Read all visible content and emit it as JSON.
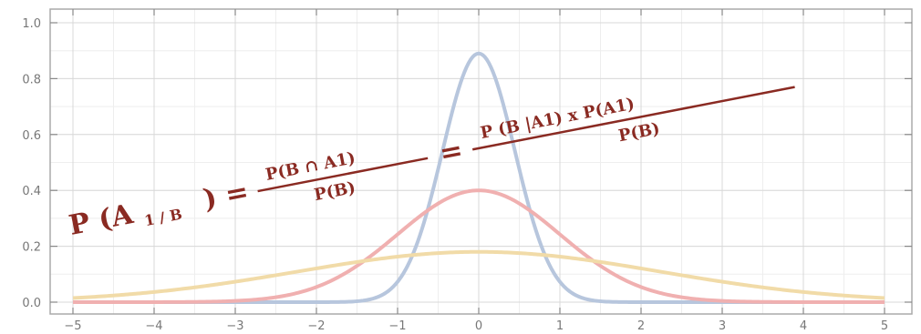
{
  "chart_data": {
    "type": "line",
    "title": "",
    "xlabel": "",
    "ylabel": "",
    "xlim": [
      -5,
      5
    ],
    "ylim": [
      0.0,
      1.0
    ],
    "x_ticks": [
      -5,
      -4,
      -3,
      -2,
      -1,
      0,
      1,
      2,
      3,
      4,
      5
    ],
    "y_ticks": [
      "0.0",
      "0.2",
      "0.4",
      "0.6",
      "0.8",
      "1.0"
    ],
    "grid": true,
    "series": [
      {
        "mean": 0,
        "sd": 0.447,
        "peak": 0.89,
        "color": "#b7c6dd"
      },
      {
        "mean": 0,
        "sd": 1.0,
        "peak": 0.4,
        "color": "#f0b0b0"
      },
      {
        "mean": 0,
        "sd": 2.236,
        "peak": 0.18,
        "color": "#f1dba8"
      }
    ]
  },
  "formula": {
    "lhs": "P (A",
    "lhs_sub": "1 / B",
    "lhs_close": ") =",
    "frac1_num": "P(B ∩ A1)",
    "frac1_den": "P(B)",
    "eq2": "=",
    "frac2_num": "P (B |A1) x P(A1)",
    "frac2_den": "P(B)",
    "color": "#8a2a22"
  }
}
